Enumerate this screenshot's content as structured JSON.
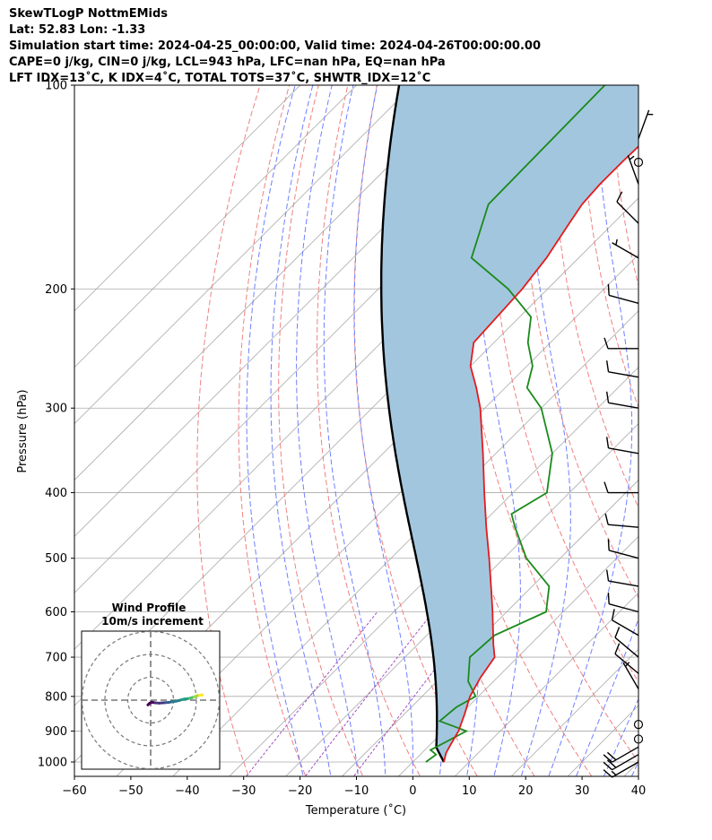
{
  "header": {
    "line1": "SkewTLogP NottmEMids",
    "line2": "Lat: 52.83   Lon: -1.33",
    "line3": "Simulation start time: 2024-04-25_00:00:00, Valid time: 2024-04-26T00:00:00.00",
    "line4": "CAPE=0 j/kg, CIN=0 j/kg, LCL=943 hPa, LFC=nan hPa, EQ=nan hPa",
    "line5": "LFT IDX=13˚C, K IDX=4˚C, TOTAL TOTS=37˚C, SHWTR_IDX=12˚C"
  },
  "chart_data": {
    "type": "line",
    "xlabel": "Temperature (˚C)",
    "ylabel": "Pressure (hPa)",
    "x_ticks": [
      -60,
      -50,
      -40,
      -30,
      -20,
      -10,
      0,
      10,
      20,
      30,
      40
    ],
    "x_tick_labels": [
      "−60",
      "−50",
      "−40",
      "−30",
      "−20",
      "−10",
      "0",
      "10",
      "20",
      "30",
      "40"
    ],
    "y_ticks": [
      100,
      200,
      300,
      400,
      500,
      600,
      700,
      800,
      900,
      1000
    ],
    "xlim": [
      -60,
      40
    ],
    "ylim": [
      1050,
      100
    ],
    "y_scale": "log",
    "skew": true,
    "grid": true,
    "colors": {
      "temperature": "#e41a1c",
      "dewpoint": "#1a8a1a",
      "parcel": "#000000",
      "shade": "#a3c6df",
      "dry_adiabats": "#f08080",
      "moist_adiabats": "#6f7fff",
      "mixing_ratio": "#a14fbf",
      "isotherms": "#aaaaaa"
    },
    "series": [
      {
        "key": "temperature",
        "p": [
          1000,
          970,
          950,
          925,
          900,
          850,
          800,
          750,
          700,
          670,
          600,
          550,
          500,
          450,
          400,
          350,
          300,
          280,
          260,
          240,
          200,
          180,
          160,
          150,
          140,
          130,
          120,
          110,
          100
        ],
        "val": [
          5.5,
          4.3,
          3.8,
          3.2,
          2.6,
          0.7,
          -1.5,
          -3.0,
          -4.1,
          -6.6,
          -12.5,
          -17.3,
          -22.6,
          -28.6,
          -35.1,
          -42.3,
          -50.8,
          -55.1,
          -60.0,
          -63.6,
          -64.5,
          -65.7,
          -67.8,
          -68.9,
          -69.3,
          -69.3,
          -69.1,
          -68.8,
          -68.9
        ]
      },
      {
        "key": "dewpoint",
        "p": [
          1000,
          975,
          960,
          950,
          900,
          870,
          830,
          800,
          760,
          700,
          650,
          600,
          550,
          500,
          450,
          430,
          400,
          350,
          300,
          280,
          260,
          240,
          220,
          200,
          180,
          150,
          100
        ],
        "val": [
          2.3,
          2.8,
          1.0,
          1.5,
          4.0,
          -2.5,
          -2.0,
          -0.5,
          -4.5,
          -8.5,
          -8.0,
          -3.0,
          -7.0,
          -16.0,
          -23.5,
          -26.5,
          -24.0,
          -30.0,
          -40.0,
          -46.1,
          -49.0,
          -54.0,
          -58.0,
          -67.0,
          -79.0,
          -85.5,
          -86.0
        ]
      }
    ],
    "wind_barbs": [
      {
        "p": 1000,
        "speed_kt": 15,
        "dir_deg": 240
      },
      {
        "p": 975,
        "speed_kt": 20,
        "dir_deg": 240
      },
      {
        "p": 950,
        "speed_kt": 20,
        "dir_deg": 240
      },
      {
        "p": 925,
        "speed_kt": 0,
        "dir_deg": 0
      },
      {
        "p": 880,
        "speed_kt": 0,
        "dir_deg": 0
      },
      {
        "p": 780,
        "speed_kt": 5,
        "dir_deg": 330
      },
      {
        "p": 740,
        "speed_kt": 10,
        "dir_deg": 310
      },
      {
        "p": 700,
        "speed_kt": 10,
        "dir_deg": 310
      },
      {
        "p": 650,
        "speed_kt": 10,
        "dir_deg": 300
      },
      {
        "p": 600,
        "speed_kt": 10,
        "dir_deg": 285
      },
      {
        "p": 550,
        "speed_kt": 10,
        "dir_deg": 280
      },
      {
        "p": 500,
        "speed_kt": 10,
        "dir_deg": 285
      },
      {
        "p": 450,
        "speed_kt": 10,
        "dir_deg": 275
      },
      {
        "p": 400,
        "speed_kt": 10,
        "dir_deg": 270
      },
      {
        "p": 350,
        "speed_kt": 10,
        "dir_deg": 280
      },
      {
        "p": 300,
        "speed_kt": 10,
        "dir_deg": 280
      },
      {
        "p": 270,
        "speed_kt": 10,
        "dir_deg": 280
      },
      {
        "p": 245,
        "speed_kt": 10,
        "dir_deg": 270
      },
      {
        "p": 210,
        "speed_kt": 10,
        "dir_deg": 285
      },
      {
        "p": 180,
        "speed_kt": 5,
        "dir_deg": 300
      },
      {
        "p": 160,
        "speed_kt": 10,
        "dir_deg": 315
      },
      {
        "p": 140,
        "speed_kt": 5,
        "dir_deg": 340
      },
      {
        "p": 130,
        "speed_kt": 0,
        "dir_deg": 0
      },
      {
        "p": 120,
        "speed_kt": 5,
        "dir_deg": 20
      }
    ],
    "hodograph": {
      "title": "Wind Profile",
      "subtitle": "10m/s increment",
      "ring_step_ms": 10,
      "u": [
        -1.2,
        -0.5,
        0.6,
        2.1,
        3.7,
        5.2,
        6.5,
        7.8,
        9.4,
        10.9,
        12.3,
        13.6,
        14.8,
        15.9,
        17.0,
        18.1,
        19.0,
        19.8,
        20.6,
        21.3,
        22.0,
        22.6
      ],
      "v": [
        -2.1,
        -1.4,
        -0.9,
        -1.2,
        -1.3,
        -1.2,
        -1.1,
        -1.0,
        -0.7,
        -0.5,
        -0.2,
        0.2,
        0.5,
        0.6,
        0.8,
        1.1,
        1.4,
        1.7,
        2.0,
        2.1,
        2.3,
        2.2
      ]
    }
  }
}
